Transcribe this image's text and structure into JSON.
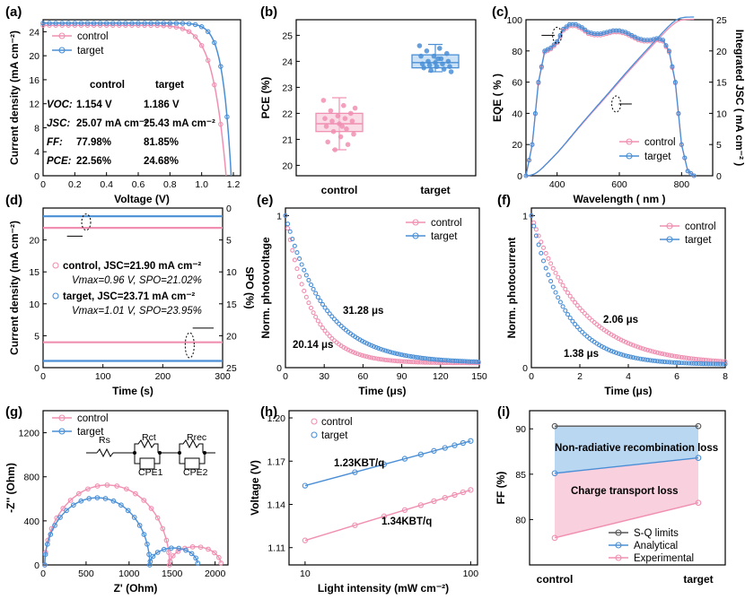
{
  "colors": {
    "control": "#f08fb1",
    "target": "#4a8fd6",
    "control_light": "#f7c4d6",
    "target_light": "#a9cdef",
    "sq": "#555555"
  },
  "panels": [
    {
      "id": "a",
      "label": "(a)"
    },
    {
      "id": "b",
      "label": "(b)"
    },
    {
      "id": "c",
      "label": "(c)"
    },
    {
      "id": "d",
      "label": "(d)"
    },
    {
      "id": "e",
      "label": "(e)"
    },
    {
      "id": "f",
      "label": "(f)"
    },
    {
      "id": "g",
      "label": "(g)"
    },
    {
      "id": "h",
      "label": "(h)"
    },
    {
      "id": "i",
      "label": "(i)"
    }
  ],
  "chart_data": [
    {
      "panel": "a",
      "type": "line",
      "xlabel": "Voltage (V)",
      "ylabel": "Current density (mA cm⁻²)",
      "xlim": [
        0,
        1.2
      ],
      "ylim": [
        0,
        26
      ],
      "xticks": [
        0,
        0.2,
        0.4,
        0.6,
        0.8,
        1.0,
        1.2
      ],
      "yticks": [
        0,
        4,
        8,
        12,
        16,
        20,
        24
      ],
      "legend": [
        "control",
        "target"
      ],
      "series": [
        {
          "name": "control",
          "jsc": 25.07,
          "voc": 1.154,
          "ff": 77.98,
          "pce": 22.56
        },
        {
          "name": "target",
          "jsc": 25.43,
          "voc": 1.186,
          "ff": 81.85,
          "pce": 24.68
        }
      ],
      "table": {
        "headers": [
          "",
          "control",
          "target"
        ],
        "rows": [
          [
            "VOC:",
            "1.154 V",
            "1.186 V"
          ],
          [
            "JSC:",
            "25.07 mA cm⁻²",
            "25.43 mA cm⁻²"
          ],
          [
            "FF:",
            "77.98%",
            "81.85%"
          ],
          [
            "PCE:",
            "22.56%",
            "24.68%"
          ]
        ]
      }
    },
    {
      "panel": "b",
      "type": "box",
      "ylabel": "PCE (%)",
      "ylim": [
        19.6,
        25.6
      ],
      "yticks": [
        20,
        21,
        22,
        23,
        24,
        25
      ],
      "categories": [
        "control",
        "target"
      ],
      "boxes": [
        {
          "name": "control",
          "q1": 21.3,
          "median": 21.6,
          "q3": 22.0,
          "min": 20.6,
          "max": 22.6,
          "points": [
            22.5,
            22.3,
            22.1,
            22.0,
            21.9,
            21.8,
            21.8,
            21.7,
            21.7,
            21.6,
            21.5,
            21.4,
            21.3,
            21.2,
            21.1,
            20.9,
            20.8,
            20.6,
            22.2,
            21.5
          ]
        },
        {
          "name": "target",
          "q1": 23.75,
          "median": 23.95,
          "q3": 24.25,
          "min": 23.6,
          "max": 24.65,
          "points": [
            24.6,
            24.5,
            24.4,
            24.3,
            24.2,
            24.2,
            24.1,
            24.0,
            24.0,
            23.95,
            23.9,
            23.9,
            23.85,
            23.8,
            23.8,
            23.75,
            23.7,
            23.65,
            23.6,
            24.1
          ]
        }
      ]
    },
    {
      "panel": "c",
      "type": "line",
      "xlabel": "Wavelength ( nm )",
      "ylabel": "EQE ( % )",
      "y2label": "Integrated JSC ( mA cm⁻² )",
      "xlim": [
        300,
        900
      ],
      "ylim": [
        0,
        100
      ],
      "y2lim": [
        0,
        25
      ],
      "xticks": [
        400,
        600,
        800
      ],
      "yticks": [
        0,
        20,
        40,
        60,
        80,
        100
      ],
      "y2ticks": [
        0,
        5,
        10,
        15,
        20,
        25
      ],
      "legend": [
        "control",
        "target"
      ],
      "eqe_points": [
        [
          300,
          0
        ],
        [
          320,
          20
        ],
        [
          340,
          60
        ],
        [
          360,
          80
        ],
        [
          380,
          82
        ],
        [
          400,
          86
        ],
        [
          420,
          94
        ],
        [
          440,
          97
        ],
        [
          460,
          97
        ],
        [
          480,
          95
        ],
        [
          500,
          92
        ],
        [
          520,
          91
        ],
        [
          540,
          91
        ],
        [
          560,
          92
        ],
        [
          580,
          93
        ],
        [
          600,
          93
        ],
        [
          620,
          92
        ],
        [
          640,
          90
        ],
        [
          660,
          88
        ],
        [
          680,
          87
        ],
        [
          700,
          87
        ],
        [
          720,
          88
        ],
        [
          740,
          87
        ],
        [
          760,
          80
        ],
        [
          780,
          60
        ],
        [
          800,
          20
        ],
        [
          820,
          3
        ],
        [
          840,
          0
        ]
      ],
      "jsc_max": [
        25.07,
        25.43
      ]
    },
    {
      "panel": "d",
      "type": "line",
      "xlabel": "Time (s)",
      "ylabel": "Current density (mA cm⁻²)",
      "y2label": "SPO (%)",
      "xlim": [
        0,
        300
      ],
      "ylim": [
        0,
        25
      ],
      "y2lim": [
        25,
        0
      ],
      "xticks": [
        0,
        100,
        200,
        300
      ],
      "yticks": [
        0,
        5,
        10,
        15,
        20
      ],
      "y2ticks": [
        0,
        5,
        10,
        15,
        20,
        25
      ],
      "series": [
        {
          "name": "control",
          "jsc": 21.9,
          "spo": 21.02,
          "vmax": 0.96,
          "text1": "control, JSC=21.90 mA cm⁻²",
          "text2": "Vmax=0.96 V, SPO=21.02%"
        },
        {
          "name": "target",
          "jsc": 23.71,
          "spo": 23.95,
          "vmax": 1.01,
          "text1": "target, JSC=23.71 mA cm⁻²",
          "text2": "Vmax=1.01 V, SPO=23.95%"
        }
      ]
    },
    {
      "panel": "e",
      "type": "scatter",
      "xlabel": "Time (μs)",
      "ylabel": "Norm. photovoltage",
      "xlim": [
        0,
        150
      ],
      "ylim": [
        0,
        1.05
      ],
      "xticks": [
        0,
        30,
        60,
        90,
        120,
        150
      ],
      "legend": [
        "control",
        "target"
      ],
      "series": [
        {
          "name": "control",
          "tau": 20.14,
          "label": "20.14 μs"
        },
        {
          "name": "target",
          "tau": 31.28,
          "label": "31.28 μs"
        }
      ]
    },
    {
      "panel": "f",
      "type": "scatter",
      "xlabel": "Time (μs)",
      "ylabel": "Norm. photocurrent",
      "xlim": [
        0,
        8
      ],
      "ylim": [
        0,
        1.05
      ],
      "xticks": [
        0,
        2,
        4,
        6,
        8
      ],
      "legend": [
        "control",
        "target"
      ],
      "series": [
        {
          "name": "control",
          "tau": 2.06,
          "label": "2.06 μs"
        },
        {
          "name": "target",
          "tau": 1.38,
          "label": "1.38 μs"
        }
      ]
    },
    {
      "panel": "g",
      "type": "scatter",
      "xlabel": "Z' (Ohm)",
      "ylabel": "-Z'' (Ohm)",
      "xlim": [
        0,
        2150
      ],
      "ylim": [
        0,
        1400
      ],
      "xticks": [
        0,
        500,
        1000,
        1500,
        2000
      ],
      "yticks": [
        0,
        400,
        800,
        1200
      ],
      "legend": [
        "control",
        "target"
      ],
      "series": [
        {
          "name": "control",
          "r1": 1450,
          "r2": 600,
          "rs": 20
        },
        {
          "name": "target",
          "r1": 1220,
          "r2": 560,
          "rs": 20
        }
      ],
      "circuit": [
        "Rs",
        "Rct",
        "Rrec",
        "CPE1",
        "CPE2"
      ]
    },
    {
      "panel": "h",
      "type": "scatter",
      "xlabel": "Light intensity (mW cm⁻²)",
      "ylabel": "Voltage (V)",
      "xlim": [
        8,
        110
      ],
      "ylim": [
        1.098,
        1.205
      ],
      "xscale": "log",
      "xticks": [
        10,
        100
      ],
      "yticks": [
        1.11,
        1.14,
        1.17,
        1.2
      ],
      "legend": [
        "control",
        "target"
      ],
      "series": [
        {
          "name": "control",
          "v10": 1.115,
          "v100": 1.15,
          "slope_label": "1.34KBT/q",
          "x": [
            10,
            20,
            30,
            40,
            50,
            60,
            70,
            80,
            90,
            100
          ]
        },
        {
          "name": "target",
          "v10": 1.153,
          "v100": 1.184,
          "slope_label": "1.23KBT/q",
          "x": [
            10,
            20,
            30,
            40,
            50,
            60,
            70,
            80,
            90,
            100
          ]
        }
      ]
    },
    {
      "panel": "i",
      "type": "line",
      "ylabel": "FF (%)",
      "ylim": [
        75,
        92
      ],
      "yticks": [
        80,
        85,
        90
      ],
      "categories": [
        "control",
        "target"
      ],
      "series": [
        {
          "name": "S-Q limits",
          "values": [
            90.3,
            90.3
          ]
        },
        {
          "name": "Analytical",
          "values": [
            85.1,
            86.8
          ]
        },
        {
          "name": "Experimental",
          "values": [
            77.98,
            81.85
          ]
        }
      ],
      "annotations": [
        "Non-radiative recombination loss",
        "Charge transport loss"
      ]
    }
  ]
}
